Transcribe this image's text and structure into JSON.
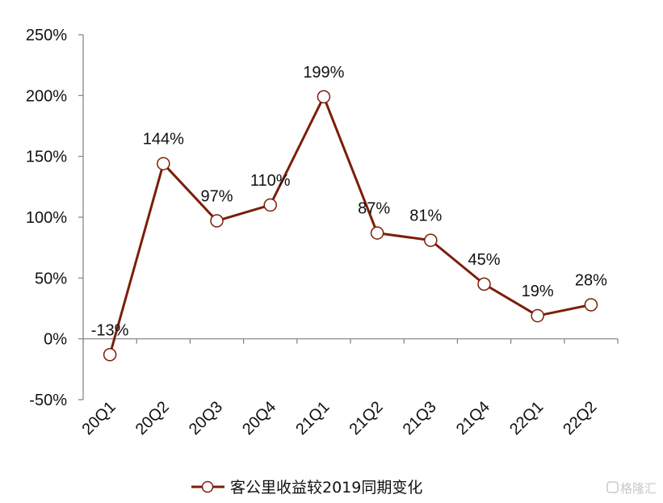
{
  "chart_data": {
    "type": "line",
    "title": "",
    "xlabel": "",
    "ylabel": "",
    "categories": [
      "20Q1",
      "20Q2",
      "20Q3",
      "20Q4",
      "21Q1",
      "21Q2",
      "21Q3",
      "21Q4",
      "22Q1",
      "22Q2"
    ],
    "series": [
      {
        "name": "客公里收益较2019同期变化",
        "values": [
          -13,
          144,
          97,
          110,
          199,
          87,
          81,
          45,
          19,
          28
        ],
        "labels": [
          "-13%",
          "144%",
          "97%",
          "110%",
          "199%",
          "87%",
          "81%",
          "45%",
          "19%",
          "28%"
        ],
        "color": "#7b1e0a"
      }
    ],
    "ylim": [
      -50,
      250
    ],
    "yticks": [
      -50,
      0,
      50,
      100,
      150,
      200,
      250
    ],
    "ytick_labels": [
      "-50%",
      "0%",
      "50%",
      "100%",
      "150%",
      "200%",
      "250%"
    ],
    "grid": false,
    "legend_position": "bottom"
  },
  "watermark": "格隆汇",
  "colors": {
    "line": "#7b1e0a",
    "axis": "#7f7f7f",
    "marker_fill": "#ffffff"
  }
}
